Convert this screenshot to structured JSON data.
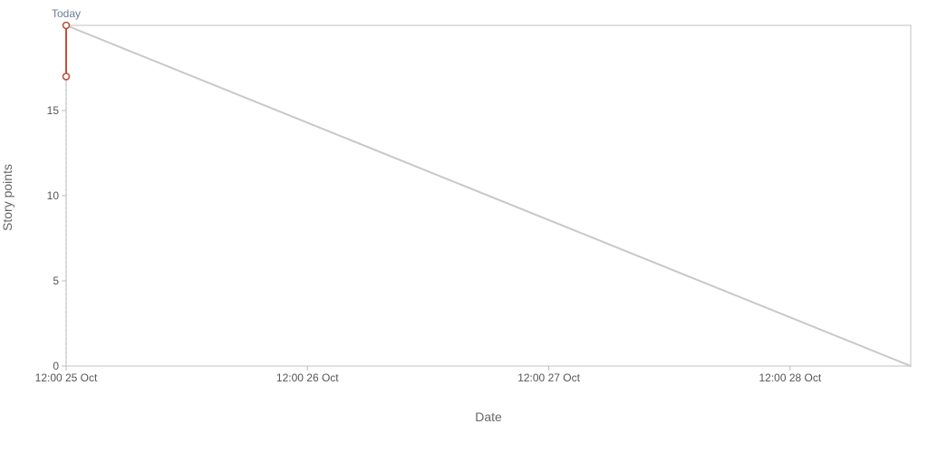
{
  "chart_data": {
    "type": "line",
    "xlabel": "Date",
    "ylabel": "Story points",
    "ylim": [
      0,
      20
    ],
    "xlim": [
      "2023-10-25T12:00",
      "2023-10-29T00:00"
    ],
    "y_ticks": [
      0,
      5,
      10,
      15
    ],
    "x_ticks": [
      {
        "x": "2023-10-25T12:00",
        "label": "12:00 25 Oct"
      },
      {
        "x": "2023-10-26T12:00",
        "label": "12:00 26 Oct"
      },
      {
        "x": "2023-10-27T12:00",
        "label": "12:00 27 Oct"
      },
      {
        "x": "2023-10-28T12:00",
        "label": "12:00 28 Oct"
      }
    ],
    "grid": false,
    "today_marker": {
      "x": "2023-10-25T12:00",
      "label": "Today"
    },
    "series": [
      {
        "color": "#c8c8c8",
        "points": [
          {
            "x": "2023-10-25T12:00",
            "y": 20
          },
          {
            "x": "2023-10-29T00:00",
            "y": 0
          }
        ]
      },
      {
        "color": "#c0503c",
        "points": [
          {
            "x": "2023-10-25T12:00",
            "y": 20
          },
          {
            "x": "2023-10-25T12:00",
            "y": 17
          }
        ]
      }
    ]
  }
}
